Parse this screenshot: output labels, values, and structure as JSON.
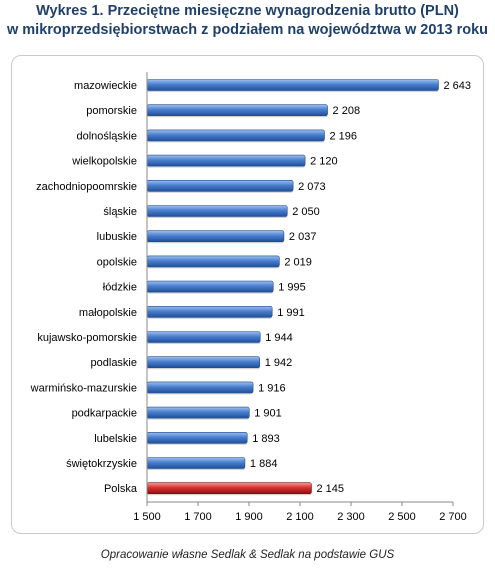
{
  "title_line1": "Wykres 1. Przeciętne miesięczne wynagrodzenia brutto (PLN)",
  "title_line2": "w mikroprzedsiębiorstwach z podziałem na województwa w 2013 roku",
  "source": "Opracowanie własne Sedlak & Sedlak na podstawie GUS",
  "colors": {
    "bar": "#3f74c4",
    "highlight": "#d42a2a",
    "title": "#1f3f6b"
  },
  "chart_data": {
    "type": "bar",
    "orientation": "horizontal",
    "title": "Wykres 1. Przeciętne miesięczne wynagrodzenia brutto (PLN) w mikroprzedsiębiorstwach z podziałem na województwa w 2013 roku",
    "categories": [
      "mazowieckie",
      "pomorskie",
      "dolnośląskie",
      "wielkopolskie",
      "zachodniopoomrskie",
      "śląskie",
      "lubuskie",
      "opolskie",
      "łódzkie",
      "małopolskie",
      "kujawsko-pomorskie",
      "podlaskie",
      "warmińsko-mazurskie",
      "podkarpackie",
      "lubelskie",
      "świętokrzyskie",
      "Polska"
    ],
    "values": [
      2643,
      2208,
      2196,
      2120,
      2073,
      2050,
      2037,
      2019,
      1995,
      1991,
      1944,
      1942,
      1916,
      1901,
      1893,
      1884,
      2145
    ],
    "value_labels": [
      "2 643",
      "2 208",
      "2 196",
      "2 120",
      "2 073",
      "2 050",
      "2 037",
      "2 019",
      "1 995",
      "1 991",
      "1 944",
      "1 942",
      "1 916",
      "1 901",
      "1 893",
      "1 884",
      "2 145"
    ],
    "highlight_index": 16,
    "xlim": [
      1500,
      2700
    ],
    "xticks": [
      1500,
      1700,
      1900,
      2100,
      2300,
      2500,
      2700
    ],
    "xtick_labels": [
      "1 500",
      "1 700",
      "1 900",
      "2 100",
      "2 300",
      "2 500",
      "2 700"
    ],
    "grid": false,
    "legend": "none"
  }
}
